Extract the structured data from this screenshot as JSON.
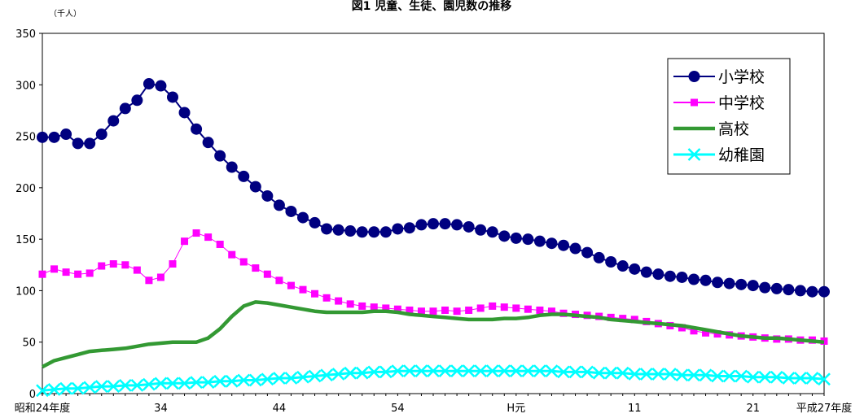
{
  "chart_data": {
    "type": "line",
    "title": "図1 児童、生徒、園児数の推移",
    "unit_label": "（千人）",
    "ylim": [
      0,
      350
    ],
    "yticks": [
      0,
      50,
      100,
      150,
      200,
      250,
      300,
      350
    ],
    "x_tick_labels": [
      {
        "index": 0,
        "label": "昭和24年度"
      },
      {
        "index": 10,
        "label": "34"
      },
      {
        "index": 20,
        "label": "44"
      },
      {
        "index": 30,
        "label": "54"
      },
      {
        "index": 40,
        "label": "H元"
      },
      {
        "index": 50,
        "label": "11"
      },
      {
        "index": 60,
        "label": "21"
      },
      {
        "index": 66,
        "label": "平成27年度"
      }
    ],
    "grid": false,
    "legend_position": "top-right",
    "series": [
      {
        "name": "小学校",
        "color": "#000080",
        "marker": "circle",
        "values": [
          249,
          249,
          252,
          243,
          243,
          252,
          265,
          277,
          285,
          301,
          299,
          288,
          273,
          257,
          244,
          231,
          220,
          211,
          201,
          192,
          183,
          177,
          171,
          166,
          160,
          159,
          158,
          157,
          157,
          157,
          160,
          161,
          164,
          165,
          165,
          164,
          162,
          159,
          157,
          153,
          151,
          150,
          148,
          146,
          144,
          141,
          137,
          132,
          128,
          124,
          121,
          118,
          116,
          114,
          113,
          111,
          110,
          108,
          107,
          106,
          105,
          103,
          102,
          101,
          100,
          99,
          99
        ]
      },
      {
        "name": "中学校",
        "color": "#ff00ff",
        "marker": "square",
        "values": [
          116,
          121,
          118,
          116,
          117,
          124,
          126,
          125,
          120,
          110,
          113,
          126,
          148,
          156,
          152,
          145,
          135,
          128,
          122,
          116,
          110,
          105,
          101,
          97,
          93,
          90,
          87,
          85,
          84,
          83,
          82,
          81,
          80,
          80,
          81,
          80,
          81,
          83,
          85,
          84,
          83,
          82,
          81,
          80,
          78,
          77,
          76,
          75,
          74,
          73,
          72,
          70,
          68,
          66,
          64,
          61,
          59,
          58,
          57,
          56,
          55,
          54,
          53,
          53,
          52,
          52,
          51
        ]
      },
      {
        "name": "高校",
        "color": "#339933",
        "marker": "none",
        "values": [
          26,
          32,
          35,
          38,
          41,
          42,
          43,
          44,
          46,
          48,
          49,
          50,
          50,
          50,
          54,
          63,
          75,
          85,
          89,
          88,
          86,
          84,
          82,
          80,
          79,
          79,
          79,
          79,
          80,
          80,
          79,
          77,
          76,
          75,
          74,
          73,
          72,
          72,
          72,
          73,
          73,
          74,
          76,
          77,
          77,
          76,
          75,
          74,
          72,
          71,
          70,
          69,
          68,
          67,
          66,
          64,
          62,
          60,
          58,
          56,
          55,
          54,
          54,
          53,
          52,
          51,
          50
        ]
      },
      {
        "name": "幼稚園",
        "color": "#00ffff",
        "marker": "x",
        "values": [
          3,
          4,
          5,
          5,
          6,
          7,
          7,
          8,
          8,
          9,
          10,
          10,
          10,
          11,
          11,
          12,
          12,
          13,
          13,
          14,
          15,
          15,
          16,
          17,
          18,
          19,
          20,
          20,
          21,
          21,
          22,
          22,
          22,
          22,
          22,
          22,
          22,
          22,
          22,
          22,
          22,
          22,
          22,
          22,
          21,
          21,
          21,
          20,
          20,
          20,
          19,
          19,
          19,
          19,
          18,
          18,
          18,
          17,
          17,
          17,
          16,
          16,
          16,
          15,
          15,
          15,
          14
        ]
      }
    ]
  }
}
